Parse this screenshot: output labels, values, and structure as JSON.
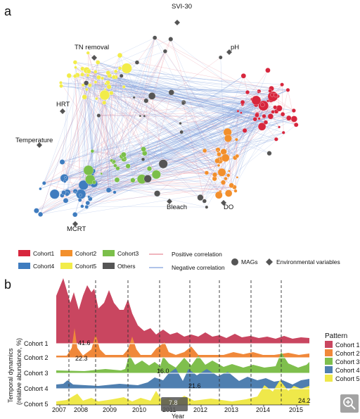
{
  "panel_a": {
    "letter": "a",
    "env_labels": [
      "SVI-30",
      "pH",
      "TN removal",
      "HRT",
      "Temperature",
      "Bleach",
      "DO",
      "MCRT"
    ],
    "legend": {
      "cohorts": [
        {
          "label": "Cohort1",
          "color": "#d7263d"
        },
        {
          "label": "Cohort2",
          "color": "#f28f2c"
        },
        {
          "label": "Cohort3",
          "color": "#7bbf4a"
        },
        {
          "label": "Cohort4",
          "color": "#3f7cbf"
        },
        {
          "label": "Cohort5",
          "color": "#f2ec4a"
        },
        {
          "label": "Others",
          "color": "#555555"
        }
      ],
      "positive": {
        "label": "Positive correlation",
        "color": "#e88a96"
      },
      "negative": {
        "label": "Negative correlation",
        "color": "#7f9fdc"
      },
      "mags_label": "MAGs",
      "env_var_label": "Environmental variables"
    }
  },
  "panel_b": {
    "letter": "b",
    "ylabel_line1": "Temporal dynamics",
    "ylabel_line2": "(relative abundance, %)",
    "xlabel": "Year",
    "years": [
      "2007",
      "2008",
      "2009",
      "2010",
      "2011",
      "2012",
      "2013",
      "2014",
      "2015"
    ],
    "rows": [
      "Cohort 1",
      "Cohort 2",
      "Cohort 3",
      "Cohort 4",
      "Cohort 5"
    ],
    "value_labels": [
      "41.6",
      "22.3",
      "16.0",
      "21.6",
      "7.8",
      "24.2"
    ],
    "legend_title": "Pattern",
    "legend_items": [
      {
        "label": "Cohort 1",
        "color": "#c94660"
      },
      {
        "label": "Cohort 2",
        "color": "#f0883a"
      },
      {
        "label": "Cohort 3",
        "color": "#7fbf4d"
      },
      {
        "label": "Cohort 4",
        "color": "#4f7fb0"
      },
      {
        "label": "Cohort 5",
        "color": "#efe84a"
      }
    ]
  }
}
